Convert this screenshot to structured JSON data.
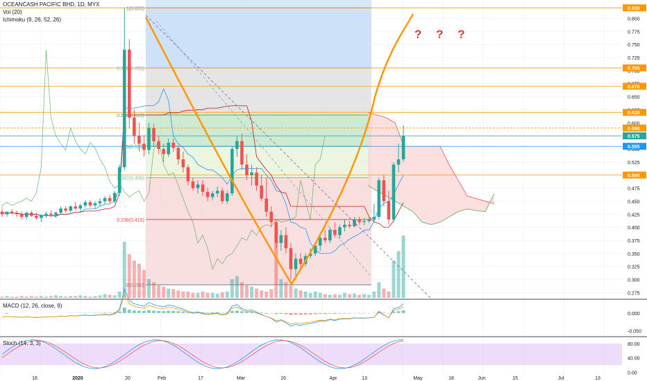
{
  "header": {
    "title": "OCEANCASH PACIFIC BHD, 1D, MYX",
    "vol_label": "Vol (20)",
    "ichimoku_label": "Ichimoku (9, 26, 52, 26)",
    "macd_label": "MACD (12, 26, close, 9)",
    "stoch_label": "Stoch (14, 3, 3)",
    "annotation": "? ? ?"
  },
  "colors": {
    "up": "#26a69a",
    "down": "#ef5350",
    "fib_blue": "#bbdefb",
    "fib_grey": "#c8c8c8",
    "fib_green": "#c8e6c9",
    "fib_red": "#ffcdd2",
    "orange": "#ff9800",
    "stoch_band": "#e1c4f7"
  },
  "chart_data": {
    "type": "candlestick",
    "symbol": "OCEANCASH PACIFIC BHD",
    "interval": "1D",
    "exchange": "MYX",
    "price_axis": {
      "ticks": [
        "0.800",
        "0.775",
        "0.750",
        "0.725",
        "0.700",
        "0.675",
        "0.650",
        "0.625",
        "0.600",
        "0.575",
        "0.550",
        "0.525",
        "0.500",
        "0.475",
        "0.450",
        "0.425",
        "0.400",
        "0.375",
        "0.350",
        "0.325",
        "0.300",
        "0.275"
      ],
      "range": [
        0.265,
        0.835
      ]
    },
    "highlighted_levels": [
      {
        "value": 0.82,
        "label": "0.820",
        "color": "#ff9800"
      },
      {
        "value": 0.705,
        "label": "0.705",
        "color": "#ff9800"
      },
      {
        "value": 0.67,
        "label": "0.670",
        "color": "#ff9800"
      },
      {
        "value": 0.62,
        "label": "0.620",
        "color": "#ff9800"
      },
      {
        "value": 0.59,
        "label": "0.590",
        "color": "#ff9800"
      },
      {
        "value": 0.575,
        "label": "0.575",
        "color": "#26a69a"
      },
      {
        "value": 0.555,
        "label": "0.555",
        "color": "#2196f3"
      },
      {
        "value": 0.5,
        "label": "0.500",
        "color": "#ff9800"
      }
    ],
    "fib_levels": [
      {
        "label": "1(0.820)",
        "value": 0.82
      },
      {
        "label": "0.786(0.705)",
        "value": 0.705
      },
      {
        "label": "0.618(0.615)",
        "value": 0.615
      },
      {
        "label": "0.5(0.555)",
        "value": 0.555
      },
      {
        "label": "0.382(0.495)",
        "value": 0.495
      },
      {
        "label": "0.236(0.415)",
        "value": 0.415
      },
      {
        "label": "0(0.290)",
        "value": 0.29
      }
    ],
    "time_axis": [
      "16",
      "2020",
      "20",
      "Feb",
      "17",
      "Mar",
      "16",
      "Apr",
      "13",
      "May",
      "18",
      "Jun",
      "15",
      "Jul",
      "13"
    ],
    "candles": [
      [
        0.43,
        0.435,
        0.42,
        0.425
      ],
      [
        0.425,
        0.43,
        0.42,
        0.43
      ],
      [
        0.43,
        0.435,
        0.425,
        0.428
      ],
      [
        0.428,
        0.432,
        0.42,
        0.425
      ],
      [
        0.425,
        0.43,
        0.415,
        0.42
      ],
      [
        0.42,
        0.43,
        0.415,
        0.428
      ],
      [
        0.428,
        0.432,
        0.42,
        0.422
      ],
      [
        0.422,
        0.428,
        0.415,
        0.418
      ],
      [
        0.418,
        0.425,
        0.41,
        0.422
      ],
      [
        0.422,
        0.43,
        0.418,
        0.426
      ],
      [
        0.426,
        0.432,
        0.42,
        0.424
      ],
      [
        0.424,
        0.43,
        0.418,
        0.428
      ],
      [
        0.428,
        0.44,
        0.425,
        0.436
      ],
      [
        0.436,
        0.44,
        0.428,
        0.432
      ],
      [
        0.432,
        0.442,
        0.428,
        0.44
      ],
      [
        0.44,
        0.448,
        0.432,
        0.436
      ],
      [
        0.436,
        0.445,
        0.43,
        0.442
      ],
      [
        0.442,
        0.452,
        0.438,
        0.448
      ],
      [
        0.448,
        0.452,
        0.438,
        0.442
      ],
      [
        0.442,
        0.45,
        0.436,
        0.446
      ],
      [
        0.446,
        0.456,
        0.44,
        0.45
      ],
      [
        0.45,
        0.46,
        0.444,
        0.456
      ],
      [
        0.456,
        0.462,
        0.446,
        0.45
      ],
      [
        0.45,
        0.47,
        0.446,
        0.466
      ],
      [
        0.466,
        0.52,
        0.46,
        0.515
      ],
      [
        0.515,
        0.82,
        0.51,
        0.74
      ],
      [
        0.74,
        0.76,
        0.59,
        0.61
      ],
      [
        0.61,
        0.625,
        0.56,
        0.575
      ],
      [
        0.575,
        0.6,
        0.545,
        0.56
      ],
      [
        0.56,
        0.575,
        0.535,
        0.548
      ],
      [
        0.548,
        0.6,
        0.54,
        0.59
      ],
      [
        0.59,
        0.598,
        0.555,
        0.565
      ],
      [
        0.565,
        0.575,
        0.54,
        0.55
      ],
      [
        0.55,
        0.56,
        0.525,
        0.54
      ],
      [
        0.54,
        0.57,
        0.535,
        0.562
      ],
      [
        0.562,
        0.57,
        0.545,
        0.552
      ],
      [
        0.552,
        0.556,
        0.52,
        0.53
      ],
      [
        0.53,
        0.545,
        0.505,
        0.515
      ],
      [
        0.515,
        0.52,
        0.48,
        0.488
      ],
      [
        0.488,
        0.495,
        0.47,
        0.475
      ],
      [
        0.475,
        0.49,
        0.465,
        0.482
      ],
      [
        0.482,
        0.49,
        0.46,
        0.468
      ],
      [
        0.468,
        0.475,
        0.45,
        0.458
      ],
      [
        0.458,
        0.47,
        0.452,
        0.465
      ],
      [
        0.465,
        0.478,
        0.458,
        0.47
      ],
      [
        0.47,
        0.475,
        0.445,
        0.45
      ],
      [
        0.45,
        0.47,
        0.445,
        0.465
      ],
      [
        0.465,
        0.555,
        0.46,
        0.55
      ],
      [
        0.55,
        0.575,
        0.535,
        0.565
      ],
      [
        0.565,
        0.58,
        0.51,
        0.52
      ],
      [
        0.52,
        0.54,
        0.49,
        0.5
      ],
      [
        0.5,
        0.52,
        0.48,
        0.505
      ],
      [
        0.505,
        0.515,
        0.47,
        0.48
      ],
      [
        0.48,
        0.5,
        0.45,
        0.455
      ],
      [
        0.455,
        0.495,
        0.42,
        0.43
      ],
      [
        0.43,
        0.44,
        0.4,
        0.41
      ],
      [
        0.41,
        0.415,
        0.36,
        0.37
      ],
      [
        0.37,
        0.395,
        0.355,
        0.385
      ],
      [
        0.385,
        0.4,
        0.35,
        0.36
      ],
      [
        0.36,
        0.37,
        0.3,
        0.32
      ],
      [
        0.32,
        0.35,
        0.3,
        0.34
      ],
      [
        0.34,
        0.35,
        0.32,
        0.33
      ],
      [
        0.33,
        0.35,
        0.325,
        0.345
      ],
      [
        0.345,
        0.36,
        0.34,
        0.35
      ],
      [
        0.35,
        0.37,
        0.345,
        0.365
      ],
      [
        0.365,
        0.39,
        0.355,
        0.38
      ],
      [
        0.38,
        0.395,
        0.37,
        0.375
      ],
      [
        0.375,
        0.4,
        0.37,
        0.395
      ],
      [
        0.395,
        0.41,
        0.38,
        0.385
      ],
      [
        0.385,
        0.405,
        0.378,
        0.4
      ],
      [
        0.4,
        0.415,
        0.392,
        0.405
      ],
      [
        0.405,
        0.412,
        0.398,
        0.402
      ],
      [
        0.402,
        0.42,
        0.4,
        0.415
      ],
      [
        0.415,
        0.42,
        0.405,
        0.41
      ],
      [
        0.41,
        0.418,
        0.404,
        0.412
      ],
      [
        0.412,
        0.42,
        0.408,
        0.415
      ],
      [
        0.415,
        0.445,
        0.41,
        0.42
      ],
      [
        0.42,
        0.495,
        0.415,
        0.49
      ],
      [
        0.49,
        0.5,
        0.44,
        0.45
      ],
      [
        0.45,
        0.47,
        0.405,
        0.415
      ],
      [
        0.415,
        0.525,
        0.41,
        0.52
      ],
      [
        0.52,
        0.56,
        0.505,
        0.53
      ],
      [
        0.53,
        0.595,
        0.525,
        0.575
      ]
    ],
    "volume": [
      2,
      3,
      2,
      2,
      3,
      2,
      3,
      2,
      3,
      2,
      3,
      4,
      3,
      2,
      3,
      3,
      4,
      3,
      2,
      3,
      4,
      6,
      5,
      4,
      10,
      90,
      70,
      60,
      55,
      45,
      30,
      25,
      20,
      18,
      15,
      14,
      12,
      10,
      10,
      8,
      8,
      10,
      8,
      8,
      7,
      9,
      10,
      30,
      35,
      25,
      20,
      18,
      15,
      12,
      10,
      14,
      90,
      30,
      25,
      20,
      15,
      12,
      10,
      8,
      10,
      8,
      6,
      5,
      6,
      5,
      8,
      6,
      7,
      5,
      6,
      5,
      10,
      25,
      15,
      10,
      60,
      75,
      100
    ],
    "ichimoku_cloud_projection": {
      "span_a": [
        0.62,
        0.615,
        0.61,
        0.6,
        0.555,
        0.555,
        0.555,
        0.555,
        0.555,
        0.52,
        0.49,
        0.46,
        0.455,
        0.45,
        0.445
      ],
      "span_b": [
        0.48,
        0.47,
        0.46,
        0.45,
        0.44,
        0.43,
        0.41,
        0.405,
        0.41,
        0.42,
        0.43,
        0.435,
        0.432,
        0.43,
        0.465
      ]
    },
    "macd": {
      "ticks": [
        "0.000",
        "-0.050"
      ],
      "range": [
        -0.065,
        0.035
      ]
    },
    "stoch": {
      "ticks": [
        "80.00",
        "40.00",
        "0.00"
      ],
      "range": [
        -5,
        95
      ],
      "band": [
        20,
        80
      ]
    }
  }
}
